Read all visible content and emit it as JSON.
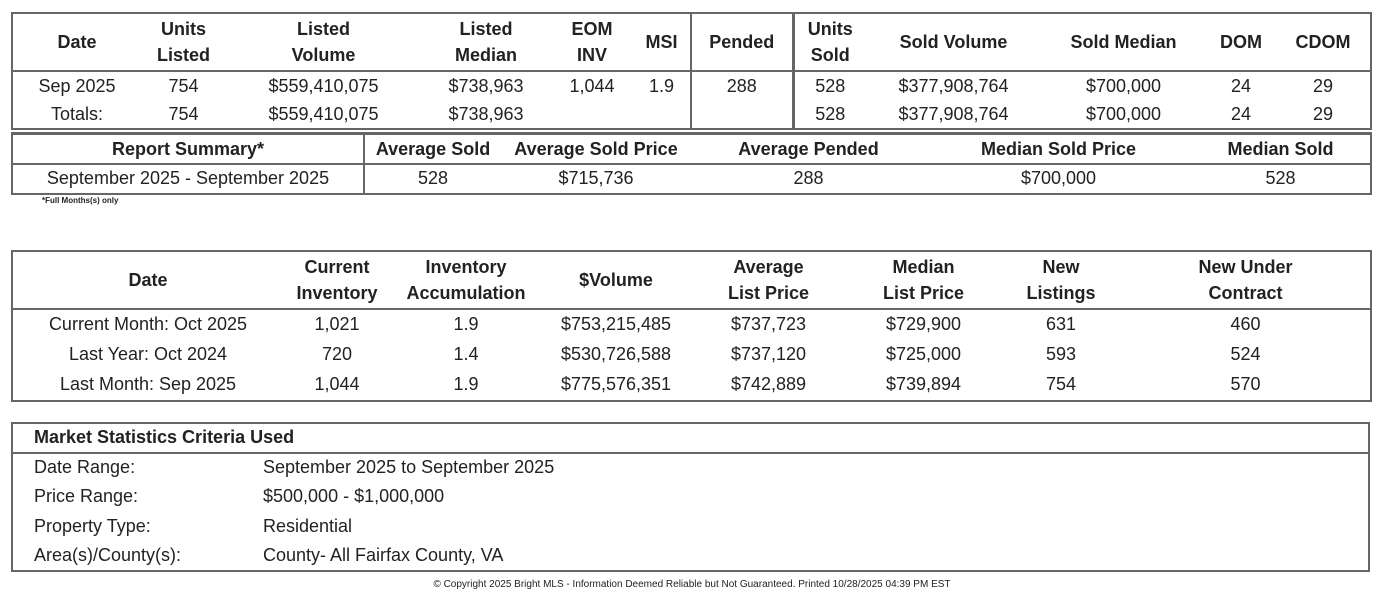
{
  "sales": {
    "headers": [
      "Date",
      "Units Listed",
      "Listed Volume",
      "Listed Median",
      "EOM INV",
      "MSI",
      "Pended",
      "Units Sold",
      "Sold Volume",
      "Sold Median",
      "DOM",
      "CDOM"
    ],
    "row": [
      "Sep 2025",
      "754",
      "$559,410,075",
      "$738,963",
      "1,044",
      "1.9",
      "288",
      "528",
      "$377,908,764",
      "$700,000",
      "24",
      "29"
    ],
    "totals": [
      "Totals:",
      "754",
      "$559,410,075",
      "$738,963",
      "",
      "",
      "",
      "528",
      "$377,908,764",
      "$700,000",
      "24",
      "29"
    ]
  },
  "summary": {
    "headers": [
      "Report Summary*",
      "Average Sold",
      "Average Sold Price",
      "Average Pended",
      "Median Sold Price",
      "Median Sold"
    ],
    "row": [
      "September 2025 - September 2025",
      "528",
      "$715,736",
      "288",
      "$700,000",
      "528"
    ],
    "note": "*Full Months(s) only"
  },
  "inventory": {
    "headers": [
      "Date",
      "Current Inventory",
      "Inventory Accumulation",
      "$Volume",
      "Average List Price",
      "Median List Price",
      "New Listings",
      "New Under Contract"
    ],
    "rows": [
      [
        "Current Month: Oct 2025",
        "1,021",
        "1.9",
        "$753,215,485",
        "$737,723",
        "$729,900",
        "631",
        "460"
      ],
      [
        "Last Year: Oct 2024",
        "720",
        "1.4",
        "$530,726,588",
        "$737,120",
        "$725,000",
        "593",
        "524"
      ],
      [
        "Last Month: Sep 2025",
        "1,044",
        "1.9",
        "$775,576,351",
        "$742,889",
        "$739,894",
        "754",
        "570"
      ]
    ]
  },
  "criteria": {
    "title": "Market Statistics Criteria Used",
    "rows": [
      [
        "Date Range:",
        "September 2025 to September 2025"
      ],
      [
        "Price Range:",
        "$500,000 - $1,000,000"
      ],
      [
        "Property Type:",
        "Residential"
      ],
      [
        "Area(s)/County(s):",
        "County- All Fairfax County, VA"
      ]
    ]
  },
  "footer": "© Copyright 2025 Bright MLS - Information Deemed Reliable but Not Guaranteed. Printed 10/28/2025 04:39 PM EST"
}
